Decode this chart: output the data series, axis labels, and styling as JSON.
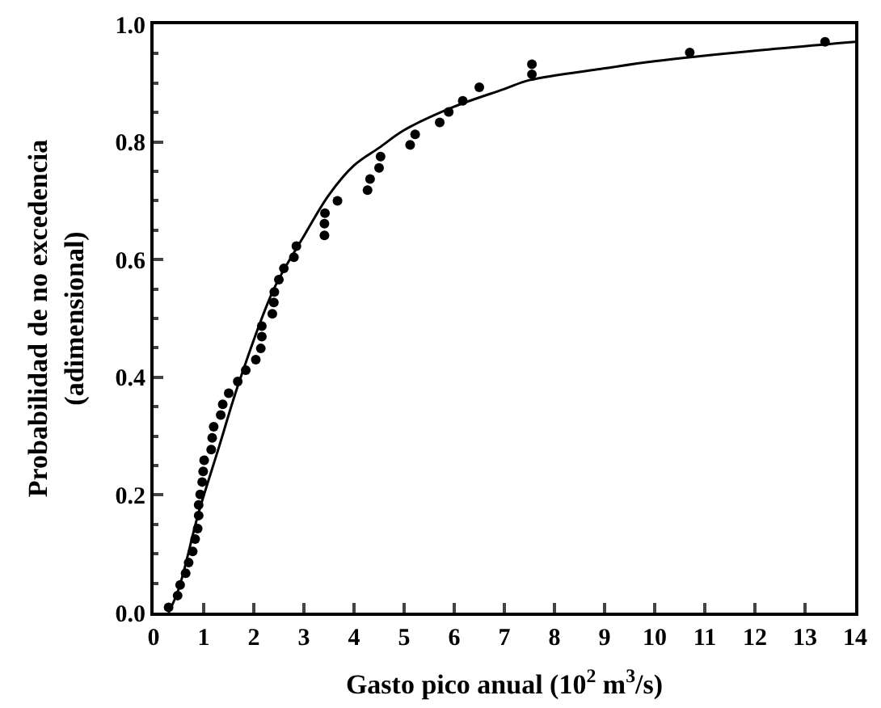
{
  "chart_data": {
    "type": "scatter",
    "xlabel": "Gasto pico anual (10$^{2}$ m$^{3}$/s)",
    "ylabel": "Probabilidad de no excedencia\n(adimensional)",
    "xlim": [
      0,
      14
    ],
    "ylim": [
      0,
      1.0
    ],
    "xticks": [
      0,
      1,
      2,
      3,
      4,
      5,
      6,
      7,
      8,
      9,
      10,
      11,
      12,
      13,
      14
    ],
    "yticks": [
      {
        "value": 0,
        "label": "0.0"
      },
      {
        "value": 0.2,
        "label": "0.2"
      },
      {
        "value": 0.4,
        "label": "0.4"
      },
      {
        "value": 0.6,
        "label": "0.6"
      },
      {
        "value": 0.8,
        "label": "0.8"
      },
      {
        "value": 1.0,
        "label": "1.0"
      }
    ],
    "series": [
      {
        "color": "#000000",
        "marker": "circle",
        "x": [
          0.3,
          0.48,
          0.53,
          0.64,
          0.7,
          0.78,
          0.83,
          0.88,
          0.9,
          0.9,
          0.93,
          0.97,
          0.99,
          1.01,
          1.15,
          1.17,
          1.2,
          1.34,
          1.38,
          1.5,
          1.68,
          1.84,
          2.04,
          2.14,
          2.16,
          2.16,
          2.37,
          2.4,
          2.41,
          2.5,
          2.6,
          2.8,
          2.85,
          3.41,
          3.41,
          3.42,
          3.67,
          4.27,
          4.32,
          4.5,
          4.53,
          5.12,
          5.22,
          5.71,
          5.89,
          6.17,
          6.5,
          7.55,
          7.55,
          10.7,
          13.4
        ],
        "values": [
          0.009,
          0.029,
          0.047,
          0.067,
          0.085,
          0.104,
          0.125,
          0.143,
          0.165,
          0.183,
          0.201,
          0.222,
          0.24,
          0.259,
          0.277,
          0.297,
          0.316,
          0.336,
          0.354,
          0.373,
          0.393,
          0.412,
          0.43,
          0.449,
          0.469,
          0.487,
          0.508,
          0.527,
          0.545,
          0.566,
          0.585,
          0.604,
          0.623,
          0.641,
          0.661,
          0.679,
          0.7,
          0.718,
          0.737,
          0.756,
          0.775,
          0.795,
          0.813,
          0.833,
          0.851,
          0.87,
          0.893,
          0.915,
          0.932,
          0.952,
          0.97
        ]
      },
      {
        "type": "line",
        "color": "#000000",
        "marker": "none",
        "line_style": "solid",
        "x": [
          0.3,
          0.5,
          0.9,
          1.3,
          1.7,
          2.4,
          3,
          3.5,
          4,
          4.5,
          5,
          6,
          7,
          7.5,
          9,
          10,
          12,
          14
        ],
        "values": [
          0,
          0.04,
          0.17,
          0.28,
          0.39,
          0.55,
          0.64,
          0.71,
          0.76,
          0.79,
          0.82,
          0.86,
          0.89,
          0.905,
          0.925,
          0.937,
          0.955,
          0.97
        ]
      }
    ]
  }
}
